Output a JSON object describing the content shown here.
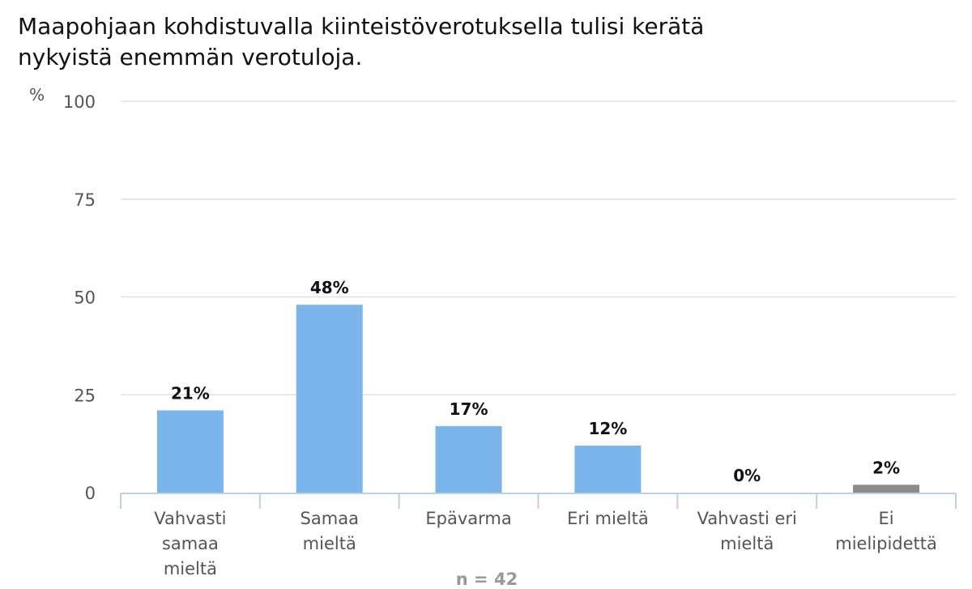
{
  "title_lines": [
    "Maapohjaan kohdistuvalla kiinteistöverotuksella tulisi kerätä",
    "nykyistä enemmän verotuloja."
  ],
  "chart_data": {
    "type": "bar",
    "y_unit_label": "%",
    "ylim": [
      0,
      100
    ],
    "yticks": [
      0,
      25,
      50,
      75,
      100
    ],
    "grid": true,
    "categories": [
      [
        "Vahvasti",
        "samaa",
        "mieltä"
      ],
      [
        "Samaa",
        "mieltä"
      ],
      [
        "Epävarma"
      ],
      [
        "Eri mieltä"
      ],
      [
        "Vahvasti eri",
        "mieltä"
      ],
      [
        "Ei",
        "mielipidettä"
      ]
    ],
    "values": [
      21,
      48,
      17,
      12,
      0,
      2
    ],
    "data_labels": [
      "21%",
      "48%",
      "17%",
      "12%",
      "0%",
      "2%"
    ],
    "bar_colors": [
      "#7cb5ec",
      "#7cb5ec",
      "#7cb5ec",
      "#7cb5ec",
      "#7cb5ec",
      "#8c8c8c"
    ],
    "footnote": "n = 42"
  }
}
